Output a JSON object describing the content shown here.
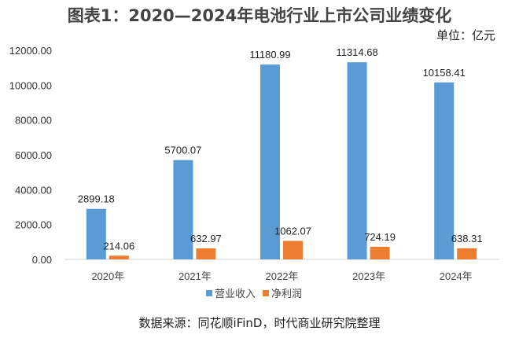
{
  "chart_data": {
    "type": "bar",
    "title": "图表1：2020—2024年电池行业上市公司业绩变化",
    "unit": "单位：亿元",
    "source": "数据来源：同花顺iFinD，时代商业研究院整理",
    "categories": [
      "2020年",
      "2021年",
      "2022年",
      "2023年",
      "2024年"
    ],
    "series": [
      {
        "name": "营业收入",
        "color": "#5B9BD5",
        "values": [
          2899.18,
          5700.07,
          11180.99,
          11314.68,
          10158.41
        ]
      },
      {
        "name": "净利润",
        "color": "#ED7D31",
        "values": [
          214.06,
          632.97,
          1062.07,
          724.19,
          638.31
        ]
      }
    ],
    "ylim": [
      0,
      12000
    ],
    "yticks": [
      "0.00",
      "2000.00",
      "4000.00",
      "6000.00",
      "8000.00",
      "10000.00",
      "12000.00"
    ],
    "legend": "bottom",
    "grid": false
  }
}
